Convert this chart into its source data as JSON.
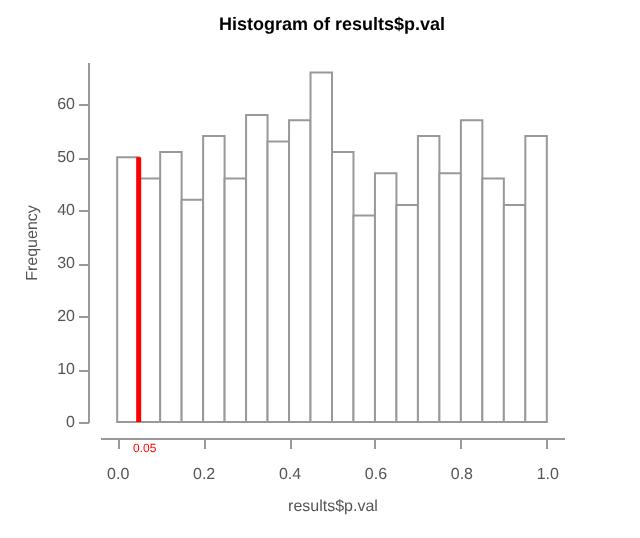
{
  "chart_data": {
    "type": "histogram",
    "title": "Histogram of results$p.val",
    "xlabel": "results$p.val",
    "ylabel": "Frequency",
    "bins": [
      0,
      0.05,
      0.1,
      0.15,
      0.2,
      0.25,
      0.3,
      0.35,
      0.4,
      0.45,
      0.5,
      0.55,
      0.6,
      0.65,
      0.7,
      0.75,
      0.8,
      0.85,
      0.9,
      0.95,
      1
    ],
    "values": [
      50,
      46,
      51,
      42,
      54,
      46,
      58,
      53,
      57,
      66,
      51,
      39,
      47,
      41,
      54,
      47,
      57,
      46,
      41,
      54
    ],
    "color": "#999999",
    "series": [
      {
        "type": "line",
        "x": [
          0.05,
          0.05
        ],
        "values": [
          0,
          50
        ],
        "color": "#ff0000"
      }
    ],
    "annotations": [
      "0.05"
    ],
    "xlim": [
      -0.04,
      1.04
    ],
    "xticks": [
      {
        "value": 0,
        "label": "0.0"
      },
      0.2,
      0.4,
      0.6,
      0.8,
      {
        "value": 1,
        "label": "1.0"
      }
    ],
    "ylim": [
      0,
      68
    ],
    "yticks": [
      0,
      10,
      20,
      30,
      40,
      50,
      60
    ],
    "grid": false
  }
}
